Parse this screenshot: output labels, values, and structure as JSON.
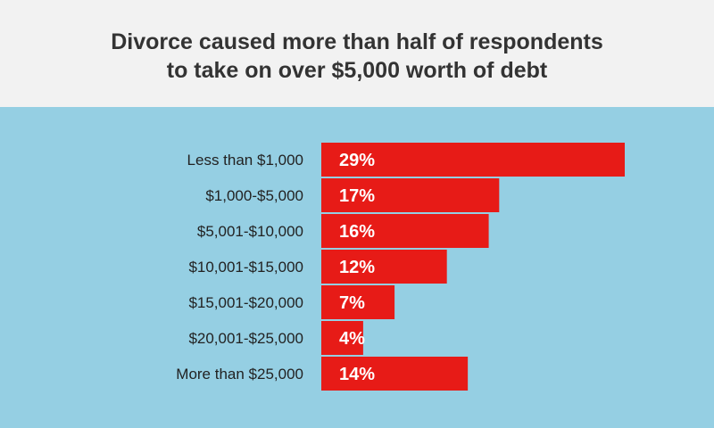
{
  "title": {
    "line1": "Divorce caused more than half of respondents",
    "line2": "to take on over $5,000 worth of debt"
  },
  "colors": {
    "header_bg": "#f2f2f2",
    "panel_bg": "#95cfe3",
    "bar": "#e71b17",
    "bar_label": "#ffffff",
    "category_text": "#222222",
    "title_text": "#333333"
  },
  "chart_data": {
    "type": "bar",
    "orientation": "horizontal",
    "categories": [
      "Less than $1,000",
      "$1,000-$5,000",
      "$5,001-$10,000",
      "$10,001-$15,000",
      "$15,001-$20,000",
      "$20,001-$25,000",
      "More than $25,000"
    ],
    "values": [
      29,
      17,
      16,
      12,
      7,
      4,
      14
    ],
    "value_labels": [
      "29%",
      "17%",
      "16%",
      "12%",
      "7%",
      "4%",
      "14%"
    ],
    "unit": "%",
    "title": "Divorce caused more than half of respondents to take on over $5,000 worth of debt",
    "xlabel": "",
    "ylabel": "",
    "xlim": [
      0,
      29
    ],
    "grid": false,
    "legend": "none"
  }
}
